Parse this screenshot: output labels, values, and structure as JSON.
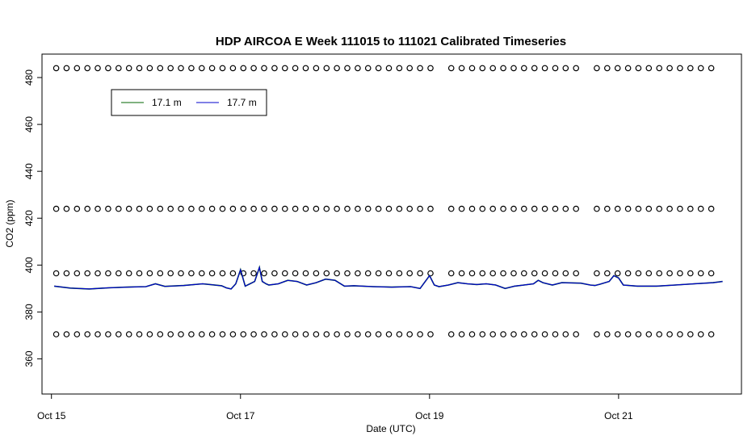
{
  "chart_data": {
    "type": "line",
    "title": "HDP AIRCOA E  Week 111015 to 111021  Calibrated Timeseries",
    "xlabel": "Date (UTC)",
    "ylabel": "CO2 (ppm)",
    "xlim": [
      -0.1,
      7.3
    ],
    "ylim": [
      345,
      490
    ],
    "x_ticks": [
      {
        "value": 0,
        "label": "Oct 15"
      },
      {
        "value": 2,
        "label": "Oct 17"
      },
      {
        "value": 4,
        "label": "Oct 19"
      },
      {
        "value": 6,
        "label": "Oct 21"
      }
    ],
    "y_ticks": [
      {
        "value": 360,
        "label": "360"
      },
      {
        "value": 380,
        "label": "380"
      },
      {
        "value": 400,
        "label": "400"
      },
      {
        "value": 420,
        "label": "420"
      },
      {
        "value": 440,
        "label": "440"
      },
      {
        "value": 460,
        "label": "460"
      },
      {
        "value": 480,
        "label": "480"
      }
    ],
    "legend": {
      "placement": "top-left",
      "entries": [
        {
          "label": "17.1 m",
          "color": "#006400"
        },
        {
          "label": "17.7 m",
          "color": "#0000cc"
        }
      ]
    },
    "series": [
      {
        "name": "17.1 m",
        "color": "#006400",
        "points": [
          [
            0.03,
            391
          ],
          [
            0.2,
            390.2
          ],
          [
            0.4,
            389.8
          ],
          [
            0.6,
            390.3
          ],
          [
            0.8,
            390.6
          ],
          [
            1.0,
            390.8
          ],
          [
            1.1,
            392
          ],
          [
            1.2,
            390.9
          ],
          [
            1.4,
            391.3
          ],
          [
            1.6,
            392
          ],
          [
            1.7,
            391.6
          ],
          [
            1.8,
            391.2
          ],
          [
            1.85,
            390.3
          ],
          [
            1.9,
            389.8
          ],
          [
            1.95,
            392
          ],
          [
            2.0,
            398
          ],
          [
            2.05,
            391
          ],
          [
            2.1,
            392
          ],
          [
            2.15,
            393
          ],
          [
            2.2,
            399
          ],
          [
            2.23,
            393
          ],
          [
            2.27,
            392
          ],
          [
            2.3,
            391.5
          ],
          [
            2.4,
            392
          ],
          [
            2.5,
            393.5
          ],
          [
            2.6,
            393
          ],
          [
            2.7,
            391.5
          ],
          [
            2.8,
            392.5
          ],
          [
            2.9,
            394
          ],
          [
            3.0,
            393.5
          ],
          [
            3.1,
            391
          ],
          [
            3.2,
            391.2
          ],
          [
            3.4,
            390.8
          ],
          [
            3.6,
            390.6
          ],
          [
            3.8,
            390.8
          ],
          [
            3.9,
            390
          ],
          [
            4.0,
            395.5
          ],
          [
            4.05,
            391.5
          ],
          [
            4.1,
            390.8
          ],
          [
            4.2,
            391.5
          ],
          [
            4.3,
            392.5
          ],
          [
            4.4,
            392
          ],
          [
            4.5,
            391.7
          ],
          [
            4.6,
            392
          ],
          [
            4.7,
            391.5
          ],
          [
            4.8,
            390
          ],
          [
            4.9,
            391
          ],
          [
            5.0,
            391.5
          ],
          [
            5.1,
            392
          ],
          [
            5.15,
            393.5
          ],
          [
            5.2,
            392.5
          ],
          [
            5.3,
            391.5
          ],
          [
            5.4,
            392.5
          ],
          [
            5.6,
            392.3
          ],
          [
            5.7,
            391.5
          ],
          [
            5.75,
            391.3
          ],
          [
            5.8,
            391.8
          ],
          [
            5.9,
            393
          ],
          [
            5.95,
            395.5
          ],
          [
            6.0,
            394.5
          ],
          [
            6.05,
            391.5
          ],
          [
            6.2,
            391
          ],
          [
            6.4,
            391
          ],
          [
            6.6,
            391.5
          ],
          [
            6.8,
            392
          ],
          [
            7.0,
            392.5
          ],
          [
            7.1,
            393
          ]
        ]
      },
      {
        "name": "17.7 m",
        "color": "#0000cc",
        "points": [
          [
            0.03,
            391
          ],
          [
            0.2,
            390.2
          ],
          [
            0.4,
            389.8
          ],
          [
            0.6,
            390.3
          ],
          [
            0.8,
            390.6
          ],
          [
            1.0,
            390.8
          ],
          [
            1.1,
            392
          ],
          [
            1.2,
            390.9
          ],
          [
            1.4,
            391.3
          ],
          [
            1.6,
            392
          ],
          [
            1.7,
            391.6
          ],
          [
            1.8,
            391.2
          ],
          [
            1.85,
            390.3
          ],
          [
            1.9,
            389.8
          ],
          [
            1.95,
            392
          ],
          [
            2.0,
            398
          ],
          [
            2.05,
            391
          ],
          [
            2.1,
            392
          ],
          [
            2.15,
            393
          ],
          [
            2.2,
            399
          ],
          [
            2.23,
            393
          ],
          [
            2.27,
            392
          ],
          [
            2.3,
            391.5
          ],
          [
            2.4,
            392
          ],
          [
            2.5,
            393.5
          ],
          [
            2.6,
            393
          ],
          [
            2.7,
            391.5
          ],
          [
            2.8,
            392.5
          ],
          [
            2.9,
            394
          ],
          [
            3.0,
            393.5
          ],
          [
            3.1,
            391
          ],
          [
            3.2,
            391.2
          ],
          [
            3.4,
            390.8
          ],
          [
            3.6,
            390.6
          ],
          [
            3.8,
            390.8
          ],
          [
            3.9,
            390
          ],
          [
            4.0,
            395.5
          ],
          [
            4.05,
            391.5
          ],
          [
            4.1,
            390.8
          ],
          [
            4.2,
            391.5
          ],
          [
            4.3,
            392.5
          ],
          [
            4.4,
            392
          ],
          [
            4.5,
            391.7
          ],
          [
            4.6,
            392
          ],
          [
            4.7,
            391.5
          ],
          [
            4.8,
            390
          ],
          [
            4.9,
            391
          ],
          [
            5.0,
            391.5
          ],
          [
            5.1,
            392
          ],
          [
            5.15,
            393.5
          ],
          [
            5.2,
            392.5
          ],
          [
            5.3,
            391.5
          ],
          [
            5.4,
            392.5
          ],
          [
            5.6,
            392.3
          ],
          [
            5.7,
            391.5
          ],
          [
            5.75,
            391.3
          ],
          [
            5.8,
            391.8
          ],
          [
            5.9,
            393
          ],
          [
            5.95,
            395.5
          ],
          [
            6.0,
            394.5
          ],
          [
            6.05,
            391.5
          ],
          [
            6.2,
            391
          ],
          [
            6.4,
            391
          ],
          [
            6.6,
            391.5
          ],
          [
            6.8,
            392
          ],
          [
            7.0,
            392.5
          ],
          [
            7.1,
            393
          ]
        ]
      }
    ],
    "calibration_points": {
      "marker": "open-circle",
      "levels": [
        484,
        424,
        396.5,
        370.5
      ],
      "x_range": [
        0.05,
        7.02
      ],
      "step": 0.11,
      "gaps": [
        [
          4.02,
          4.22
        ],
        [
          5.66,
          5.76
        ]
      ]
    }
  }
}
